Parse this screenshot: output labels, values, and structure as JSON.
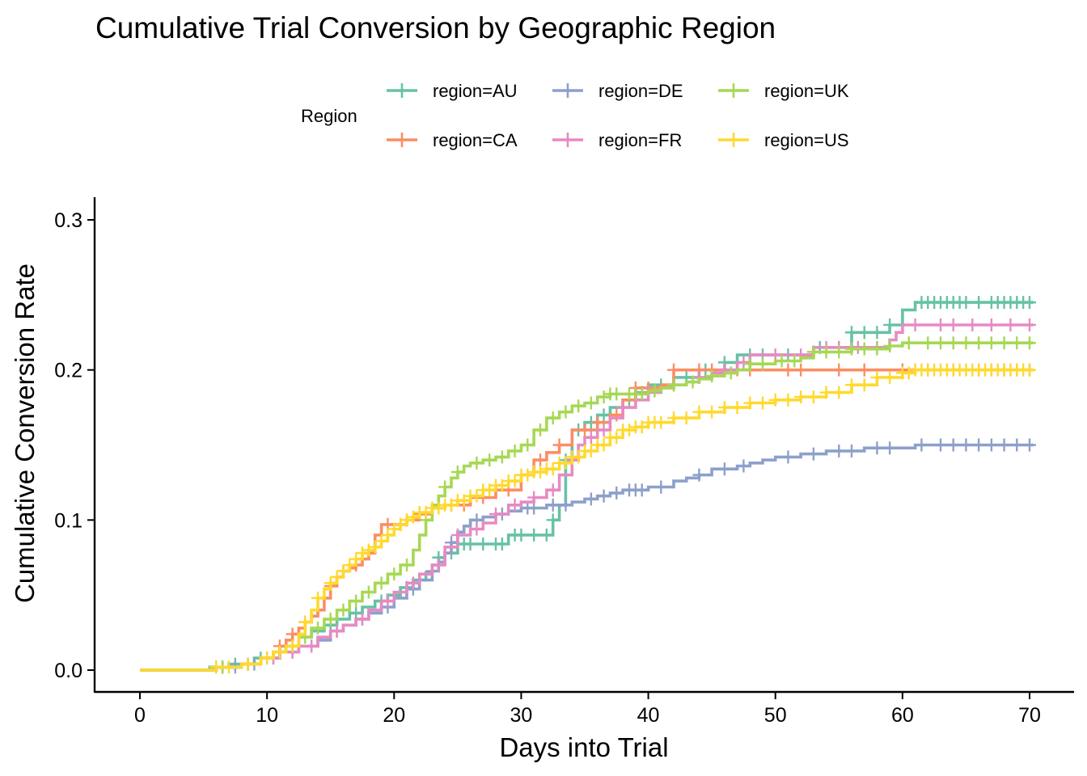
{
  "chart_data": {
    "type": "line",
    "step": true,
    "title": "Cumulative Trial Conversion by Geographic Region",
    "xlabel": "Days into Trial",
    "ylabel": "Cumulative Conversion Rate",
    "xlim": [
      0,
      70
    ],
    "ylim": [
      0,
      0.3
    ],
    "x_ticks": [
      0,
      10,
      20,
      30,
      40,
      50,
      60,
      70
    ],
    "x_tick_labels": [
      "0",
      "10",
      "20",
      "30",
      "40",
      "50",
      "60",
      "70"
    ],
    "y_ticks": [
      0,
      0.1,
      0.2,
      0.3
    ],
    "y_tick_labels": [
      "0.0",
      "0.1",
      "0.2",
      "0.3"
    ],
    "grid": false,
    "legend": {
      "title": "Region",
      "position": "top",
      "columns": 3
    },
    "series": [
      {
        "name": "region=AU",
        "color": "#66c2a5",
        "x": [
          0,
          5.5,
          7,
          9,
          10.5,
          11.5,
          12.5,
          13.5,
          14.5,
          15.5,
          16.5,
          17.5,
          18.5,
          19.5,
          20.5,
          21.5,
          22.5,
          23,
          23.5,
          24,
          25,
          28,
          29,
          31.5,
          32.5,
          33,
          33.5,
          34,
          35,
          36,
          37,
          38,
          39,
          40,
          41,
          42,
          43,
          44,
          45,
          46,
          47,
          50,
          52,
          53,
          55,
          56,
          58,
          59,
          60,
          61,
          70.3
        ],
        "y": [
          0,
          0.002,
          0.004,
          0.008,
          0.012,
          0.016,
          0.022,
          0.026,
          0.03,
          0.034,
          0.038,
          0.042,
          0.046,
          0.05,
          0.055,
          0.06,
          0.065,
          0.07,
          0.075,
          0.078,
          0.084,
          0.084,
          0.09,
          0.09,
          0.1,
          0.11,
          0.14,
          0.16,
          0.165,
          0.17,
          0.175,
          0.18,
          0.185,
          0.19,
          0.19,
          0.195,
          0.195,
          0.2,
          0.2,
          0.205,
          0.21,
          0.21,
          0.21,
          0.215,
          0.215,
          0.225,
          0.225,
          0.23,
          0.24,
          0.245,
          0.245
        ],
        "censor_x": [
          6,
          7.5,
          9.5,
          11,
          13,
          15,
          17,
          19,
          21,
          23.5,
          24.5,
          25.5,
          26,
          27,
          28,
          28.5,
          29.5,
          30,
          31,
          32,
          32.5,
          33.5,
          34.5,
          35.5,
          36.5,
          38.5,
          39.5,
          41,
          43,
          44.5,
          46,
          48,
          49,
          51,
          53.5,
          55,
          56,
          57,
          58,
          59,
          61.5,
          62,
          62.5,
          63,
          63.5,
          64,
          64.5,
          65,
          66,
          67,
          67.5,
          68,
          68.5,
          69,
          69.5,
          70
        ]
      },
      {
        "name": "region=CA",
        "color": "#fc8d62",
        "x": [
          0,
          6,
          8,
          9.5,
          10.5,
          11,
          11.5,
          12,
          12.5,
          13,
          13.5,
          14,
          14.5,
          15,
          15.5,
          16,
          16.5,
          17,
          17.5,
          18,
          18.5,
          19,
          20,
          21,
          22,
          23,
          24,
          26,
          28,
          30,
          31,
          32,
          33,
          34,
          35,
          36,
          37,
          38,
          39,
          41,
          42,
          43,
          44,
          70.3
        ],
        "y": [
          0,
          0.002,
          0.004,
          0.008,
          0.012,
          0.016,
          0.02,
          0.024,
          0.028,
          0.032,
          0.036,
          0.04,
          0.048,
          0.056,
          0.062,
          0.066,
          0.068,
          0.07,
          0.074,
          0.078,
          0.09,
          0.097,
          0.097,
          0.1,
          0.104,
          0.108,
          0.11,
          0.115,
          0.12,
          0.13,
          0.14,
          0.145,
          0.15,
          0.16,
          0.16,
          0.165,
          0.17,
          0.18,
          0.188,
          0.19,
          0.2,
          0.2,
          0.2,
          0.2
        ],
        "censor_x": [
          6.5,
          8.5,
          11,
          12,
          13,
          14,
          15,
          16,
          17,
          18,
          19.5,
          20.5,
          21,
          22,
          24.5,
          25.5,
          27,
          29,
          31.5,
          33,
          35,
          36,
          37.5,
          39,
          40,
          42,
          44,
          45,
          46,
          47,
          48,
          51,
          52,
          55,
          57,
          60,
          62,
          64,
          66,
          67,
          68,
          69,
          70
        ]
      },
      {
        "name": "region=DE",
        "color": "#8da0cb",
        "x": [
          0,
          6,
          8,
          9.5,
          11,
          12.5,
          14,
          15,
          16,
          17,
          18,
          19,
          20,
          21,
          22,
          23,
          23.5,
          24,
          24.5,
          25,
          25.5,
          26,
          27,
          28,
          29,
          30,
          32,
          34,
          35,
          36,
          37,
          38,
          40,
          42,
          43,
          44,
          45,
          47,
          48,
          49,
          50,
          52,
          54,
          57,
          60,
          61,
          70.3
        ],
        "y": [
          0,
          0.002,
          0.004,
          0.008,
          0.012,
          0.016,
          0.02,
          0.026,
          0.03,
          0.034,
          0.038,
          0.042,
          0.048,
          0.054,
          0.06,
          0.066,
          0.072,
          0.078,
          0.085,
          0.092,
          0.096,
          0.1,
          0.102,
          0.104,
          0.106,
          0.108,
          0.11,
          0.112,
          0.114,
          0.116,
          0.118,
          0.12,
          0.122,
          0.126,
          0.128,
          0.13,
          0.134,
          0.136,
          0.138,
          0.14,
          0.142,
          0.144,
          0.146,
          0.148,
          0.148,
          0.15,
          0.15
        ],
        "censor_x": [
          6.5,
          7.5,
          9,
          10.5,
          12,
          13.5,
          15.5,
          17.5,
          19.5,
          21.5,
          23,
          24.5,
          26.5,
          28.5,
          30.5,
          31,
          32.5,
          33.5,
          35.5,
          36.5,
          37.5,
          38.5,
          39,
          39.5,
          41,
          44,
          46,
          47.5,
          51,
          53,
          55,
          56,
          58,
          59,
          61.5,
          63,
          64,
          65,
          66,
          67,
          68,
          69,
          70
        ]
      },
      {
        "name": "region=FR",
        "color": "#e78ac3",
        "x": [
          0,
          6,
          8,
          9.5,
          11,
          12.5,
          14,
          15,
          16,
          17,
          18,
          19,
          20,
          21,
          22,
          23,
          24,
          25,
          26,
          27,
          28,
          29,
          30,
          31,
          32,
          33,
          34,
          34.5,
          35,
          36,
          37,
          38,
          39,
          40,
          41,
          42,
          43,
          44,
          45,
          46,
          47,
          48,
          51,
          53,
          56,
          59,
          59.5,
          60,
          70.3
        ],
        "y": [
          0,
          0.002,
          0.004,
          0.008,
          0.012,
          0.016,
          0.022,
          0.026,
          0.03,
          0.034,
          0.04,
          0.046,
          0.052,
          0.058,
          0.064,
          0.07,
          0.082,
          0.09,
          0.094,
          0.098,
          0.104,
          0.11,
          0.112,
          0.115,
          0.12,
          0.13,
          0.14,
          0.15,
          0.155,
          0.16,
          0.168,
          0.175,
          0.18,
          0.185,
          0.188,
          0.19,
          0.192,
          0.195,
          0.198,
          0.2,
          0.205,
          0.21,
          0.21,
          0.215,
          0.215,
          0.22,
          0.225,
          0.23,
          0.23
        ],
        "censor_x": [
          6.5,
          8.5,
          10.5,
          12,
          13.5,
          15.5,
          17.5,
          19.5,
          21.5,
          23.5,
          25,
          26.5,
          28,
          29.5,
          31,
          32.5,
          34,
          35.5,
          36.5,
          38,
          40,
          42,
          44,
          46,
          47.5,
          50,
          52,
          54,
          55,
          56.5,
          58,
          61,
          63,
          64,
          65.5,
          67,
          68.5,
          70
        ]
      },
      {
        "name": "region=UK",
        "color": "#a6d854",
        "x": [
          0,
          6,
          8,
          9.5,
          10.5,
          11.5,
          12.5,
          13.5,
          14.5,
          15.5,
          16.5,
          17.5,
          18.5,
          19.5,
          20.5,
          21.5,
          22,
          22.5,
          23,
          23.5,
          24,
          24.5,
          25,
          25.5,
          26,
          27,
          28,
          29,
          30,
          31,
          32,
          33,
          34,
          35,
          36,
          37,
          38,
          40,
          41,
          42,
          43,
          44,
          45,
          46,
          47,
          48,
          50,
          52,
          53,
          56,
          59,
          60,
          70.3
        ],
        "y": [
          0,
          0.002,
          0.004,
          0.008,
          0.012,
          0.016,
          0.022,
          0.028,
          0.034,
          0.04,
          0.046,
          0.052,
          0.058,
          0.064,
          0.07,
          0.08,
          0.09,
          0.1,
          0.11,
          0.116,
          0.122,
          0.128,
          0.132,
          0.136,
          0.138,
          0.14,
          0.142,
          0.146,
          0.15,
          0.16,
          0.168,
          0.172,
          0.176,
          0.178,
          0.182,
          0.184,
          0.184,
          0.186,
          0.188,
          0.19,
          0.192,
          0.194,
          0.196,
          0.198,
          0.2,
          0.204,
          0.206,
          0.208,
          0.212,
          0.214,
          0.216,
          0.218,
          0.218
        ],
        "censor_x": [
          6.5,
          8.5,
          10,
          11,
          12,
          13,
          14,
          15,
          16,
          17,
          18,
          19,
          20,
          21,
          22.5,
          24,
          25,
          26.5,
          27.5,
          28.5,
          29.5,
          30.5,
          31.5,
          32.5,
          33.5,
          34.5,
          35.5,
          36.5,
          37,
          37.5,
          38.5,
          39,
          39.5,
          40.5,
          42,
          43.5,
          45,
          46.5,
          48,
          49,
          50.5,
          51.5,
          53,
          54,
          55,
          56,
          57,
          58,
          59,
          60.5,
          62,
          63,
          64,
          65,
          66,
          67,
          68,
          69,
          70
        ]
      },
      {
        "name": "region=US",
        "color": "#ffd92f",
        "x": [
          0,
          6,
          8,
          9.5,
          10.5,
          11.5,
          12.5,
          13,
          13.5,
          14,
          14.5,
          15,
          15.5,
          16,
          16.5,
          17,
          17.5,
          18,
          18.5,
          19,
          19.5,
          20,
          20.5,
          21,
          21.5,
          22,
          23,
          24,
          25,
          26,
          27,
          28,
          29,
          30,
          31,
          32,
          33,
          34,
          35,
          36,
          37,
          38,
          39,
          40,
          42,
          44,
          46,
          48,
          50,
          52,
          54,
          56,
          58,
          60,
          61,
          70.3
        ],
        "y": [
          0,
          0.002,
          0.004,
          0.008,
          0.012,
          0.016,
          0.024,
          0.032,
          0.04,
          0.048,
          0.054,
          0.058,
          0.062,
          0.066,
          0.07,
          0.074,
          0.078,
          0.08,
          0.082,
          0.086,
          0.09,
          0.094,
          0.097,
          0.1,
          0.102,
          0.105,
          0.108,
          0.11,
          0.113,
          0.116,
          0.12,
          0.123,
          0.126,
          0.13,
          0.132,
          0.134,
          0.138,
          0.142,
          0.146,
          0.15,
          0.155,
          0.16,
          0.162,
          0.165,
          0.168,
          0.172,
          0.175,
          0.178,
          0.18,
          0.182,
          0.185,
          0.19,
          0.195,
          0.198,
          0.2,
          0.2
        ],
        "censor_x": [
          6,
          7,
          8.5,
          10,
          11,
          12,
          13,
          14,
          15,
          15.5,
          16,
          16.5,
          17,
          17.5,
          18,
          18.5,
          19,
          19.5,
          20,
          20.5,
          21,
          21.5,
          22,
          22.5,
          23,
          23.5,
          24,
          24.5,
          25,
          25.5,
          26,
          26.5,
          27,
          27.5,
          28,
          28.5,
          29,
          29.5,
          30,
          30.5,
          31,
          31.5,
          32,
          32.5,
          33,
          33.5,
          34,
          34.5,
          35,
          35.5,
          36,
          36.5,
          37,
          37.5,
          38,
          38.5,
          39,
          39.5,
          40,
          40.5,
          41,
          42,
          43,
          44,
          45,
          46,
          47,
          48,
          49,
          50,
          51,
          52,
          53,
          54,
          55,
          56,
          57,
          58,
          59,
          60,
          60.5,
          61,
          61.5,
          62,
          62.5,
          63,
          63.5,
          64,
          64.5,
          65,
          65.5,
          66,
          66.5,
          67,
          67.5,
          68,
          68.5,
          69,
          69.5,
          70
        ]
      }
    ]
  }
}
